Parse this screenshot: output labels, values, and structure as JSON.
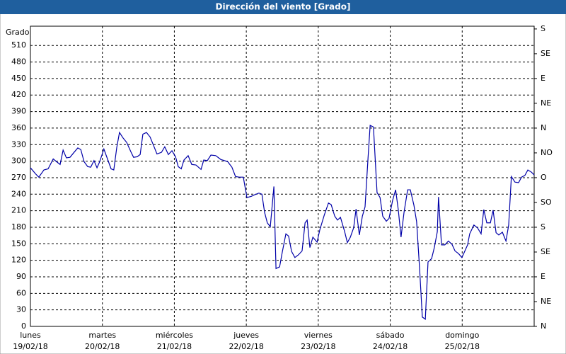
{
  "chart_data": {
    "type": "line",
    "title": "Dirección del viento [Grado]",
    "y_label": "Grado",
    "xlim": [
      0,
      168
    ],
    "ylim": [
      0,
      545
    ],
    "y2lim": [
      0,
      545
    ],
    "yticks": [
      0,
      30,
      60,
      90,
      120,
      150,
      180,
      210,
      240,
      270,
      300,
      330,
      360,
      390,
      420,
      450,
      480,
      510
    ],
    "y2ticks": [
      {
        "value": 0,
        "label": "N"
      },
      {
        "value": 45,
        "label": "NE"
      },
      {
        "value": 90,
        "label": "E"
      },
      {
        "value": 135,
        "label": "SE"
      },
      {
        "value": 180,
        "label": "S"
      },
      {
        "value": 225,
        "label": "SO"
      },
      {
        "value": 270,
        "label": "O"
      },
      {
        "value": 315,
        "label": "NO"
      },
      {
        "value": 360,
        "label": "N"
      },
      {
        "value": 405,
        "label": "NE"
      },
      {
        "value": 450,
        "label": "E"
      },
      {
        "value": 495,
        "label": "SE"
      },
      {
        "value": 540,
        "label": "S"
      }
    ],
    "xticks": [
      {
        "value": 0,
        "label": "lunes",
        "date": "19/02/18"
      },
      {
        "value": 24,
        "label": "martes",
        "date": "20/02/18"
      },
      {
        "value": 48,
        "label": "miércoles",
        "date": "21/02/18"
      },
      {
        "value": 72,
        "label": "jueves",
        "date": "22/02/18"
      },
      {
        "value": 96,
        "label": "viernes",
        "date": "23/02/18"
      },
      {
        "value": 120,
        "label": "sábado",
        "date": "24/02/18"
      },
      {
        "value": 144,
        "label": "domingo",
        "date": "25/02/18"
      }
    ],
    "grid": true,
    "series": [
      {
        "name": "Dirección del viento",
        "color": "#0000a8",
        "x": [
          0,
          1.7,
          2.8,
          4.5,
          5.9,
          7.6,
          8.7,
          9.9,
          10.9,
          12.0,
          13.2,
          14.4,
          15.8,
          16.8,
          17.9,
          19.1,
          20.1,
          21.2,
          22.2,
          23.1,
          24.5,
          25.7,
          26.9,
          27.8,
          28.8,
          29.7,
          30.9,
          32.1,
          33.5,
          34.4,
          35.6,
          36.6,
          37.5,
          38.7,
          39.9,
          41.1,
          42.2,
          43.7,
          44.8,
          46.0,
          47.2,
          48.4,
          49.3,
          50.3,
          51.2,
          52.6,
          53.8,
          55.2,
          56.9,
          57.8,
          59.0,
          60.2,
          61.8,
          63.5,
          64.7,
          65.8,
          67.2,
          68.4,
          69.6,
          71.0,
          72.2,
          73.6,
          74.8,
          76.2,
          77.2,
          78.1,
          79.0,
          80.0,
          81.2,
          81.9,
          83.1,
          84.0,
          85.2,
          86.1,
          87.1,
          88.2,
          89.4,
          90.6,
          91.6,
          92.3,
          93.2,
          94.2,
          95.6,
          96.5,
          98.0,
          99.4,
          100.3,
          101.5,
          102.4,
          103.4,
          104.8,
          105.7,
          106.7,
          107.8,
          108.6,
          109.7,
          110.7,
          111.6,
          112.6,
          113.3,
          114.4,
          115.6,
          116.6,
          117.5,
          118.7,
          119.6,
          120.8,
          121.8,
          122.7,
          123.6,
          124.6,
          125.8,
          126.7,
          127.9,
          128.8,
          129.8,
          130.7,
          131.7,
          132.6,
          133.8,
          134.7,
          135.7,
          136.1,
          137.1,
          138.2,
          139.4,
          140.6,
          141.6,
          142.8,
          143.9,
          144.9,
          145.8,
          146.5,
          147.9,
          149.1,
          150.3,
          151.2,
          152.2,
          153.4,
          154.3,
          155.3,
          156.2,
          157.4,
          158.6,
          159.5,
          160.4,
          161.6,
          162.8,
          163.8,
          164.9,
          165.9,
          167.1,
          168.0
        ],
        "values": [
          288,
          277,
          271,
          284,
          286,
          304,
          299,
          294,
          320,
          306,
          307,
          315,
          324,
          321,
          299,
          290,
          289,
          301,
          288,
          299,
          322,
          304,
          286,
          284,
          325,
          352,
          342,
          334,
          317,
          307,
          308,
          312,
          349,
          352,
          344,
          328,
          313,
          316,
          326,
          312,
          319,
          308,
          290,
          286,
          302,
          310,
          294,
          293,
          285,
          302,
          301,
          311,
          310,
          303,
          301,
          299,
          289,
          272,
          271,
          271,
          234,
          236,
          239,
          242,
          240,
          207,
          188,
          181,
          254,
          105,
          108,
          135,
          168,
          164,
          136,
          125,
          130,
          137,
          188,
          193,
          143,
          162,
          153,
          175,
          202,
          224,
          221,
          200,
          193,
          198,
          172,
          152,
          162,
          179,
          213,
          166,
          200,
          217,
          306,
          365,
          362,
          243,
          234,
          200,
          191,
          196,
          229,
          248,
          211,
          162,
          207,
          248,
          248,
          220,
          190,
          104,
          17,
          13,
          117,
          123,
          143,
          172,
          235,
          148,
          148,
          155,
          149,
          137,
          132,
          125,
          137,
          148,
          168,
          184,
          179,
          168,
          212,
          188,
          188,
          211,
          170,
          166,
          171,
          155,
          184,
          272,
          262,
          261,
          271,
          274,
          284,
          280,
          275
        ]
      }
    ]
  }
}
